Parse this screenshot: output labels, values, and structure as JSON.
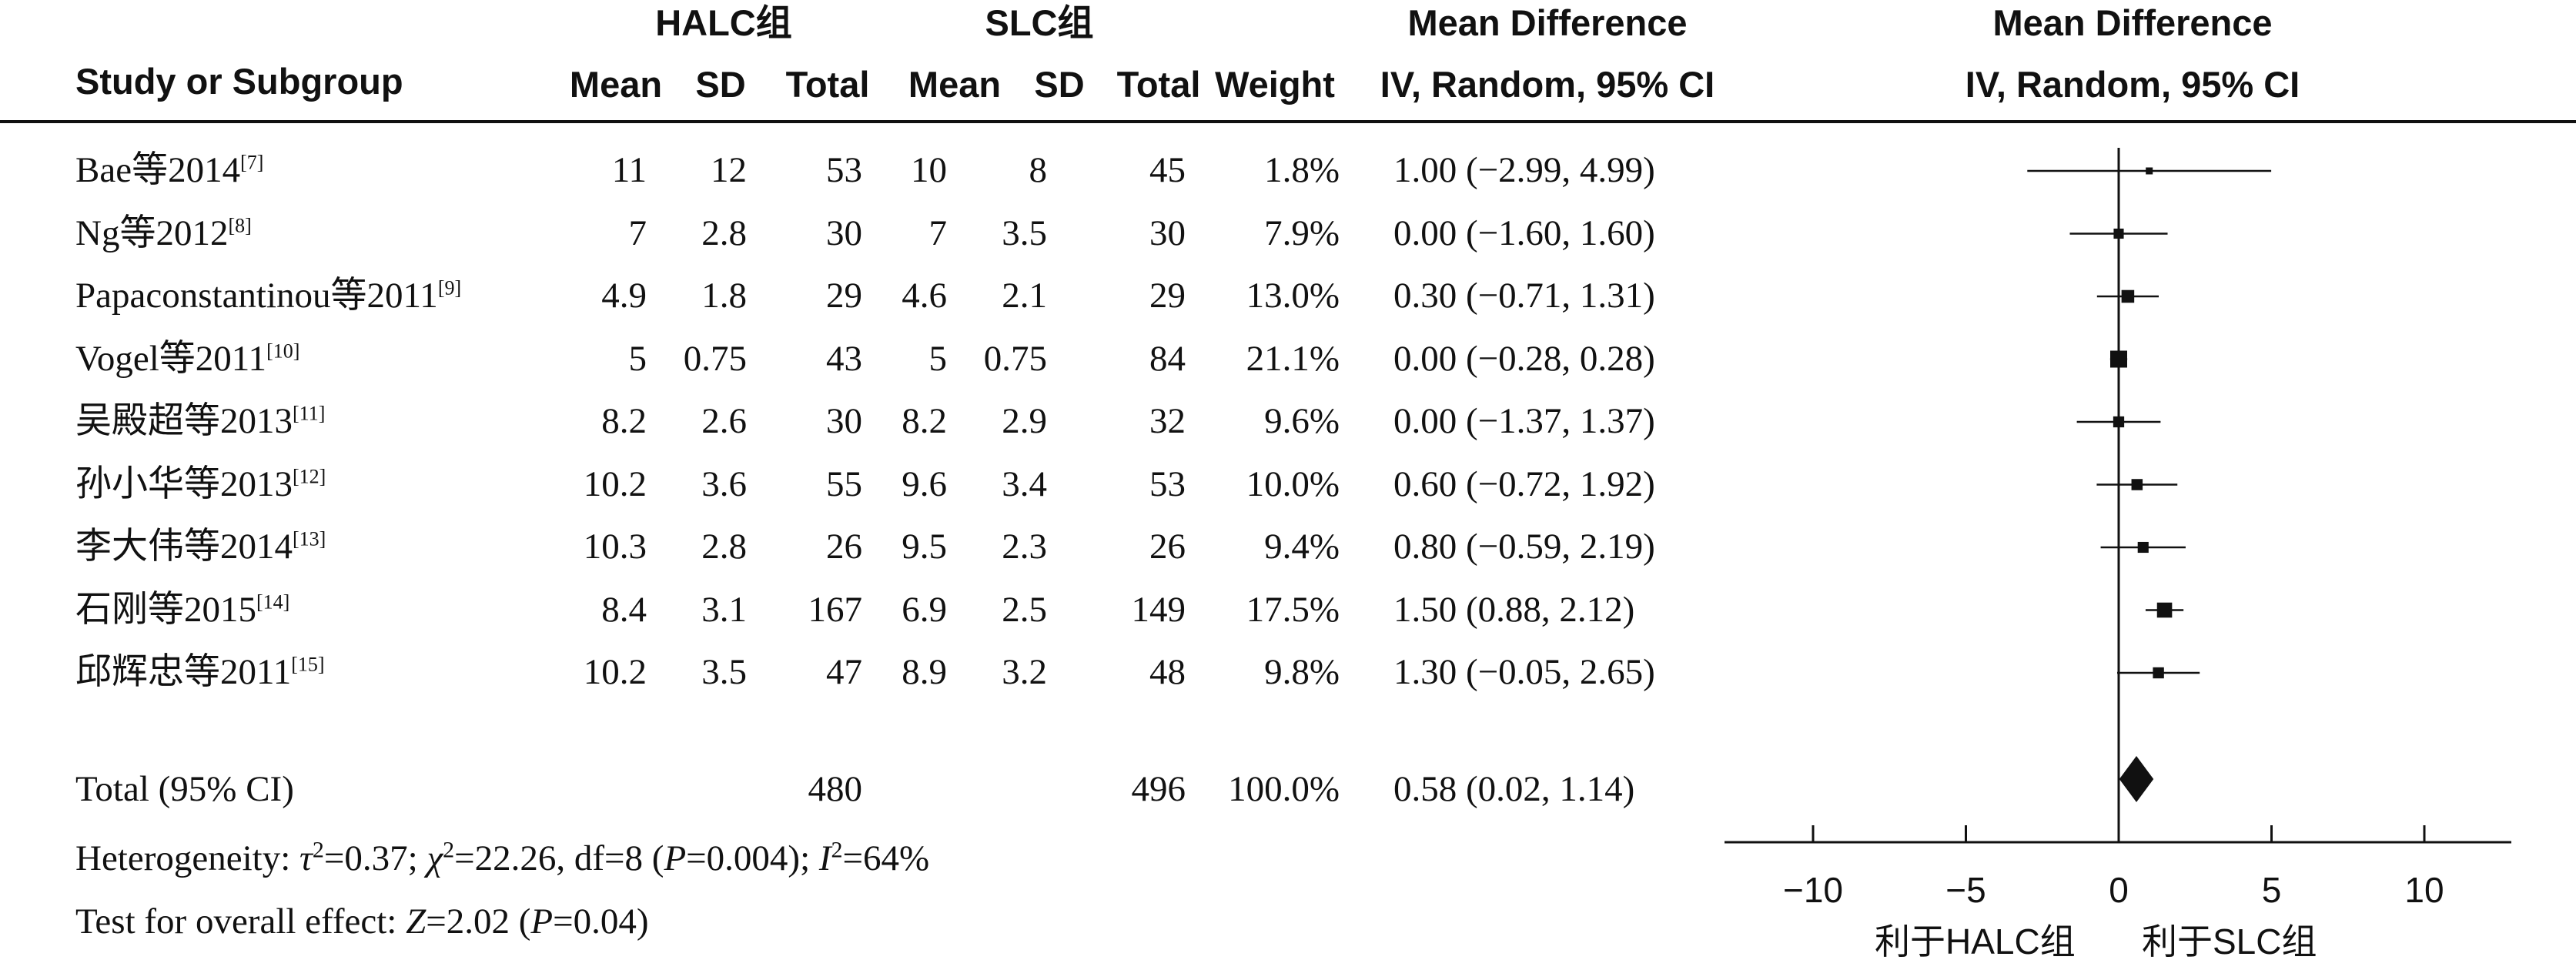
{
  "headers": {
    "halc_group": "HALC组",
    "slc_group": "SLC组",
    "md_title": "Mean Difference",
    "study": "Study or Subgroup",
    "mean": "Mean",
    "sd": "SD",
    "total": "Total",
    "weight": "Weight",
    "md_method": "IV, Random, 95% CI",
    "plot_title": "Mean Difference",
    "plot_method": "IV, Random, 95% CI"
  },
  "studies": [
    {
      "name": "Bae等2014",
      "ref": "[7]",
      "halc_mean": "11",
      "halc_sd": "12",
      "halc_total": "53",
      "slc_mean": "10",
      "slc_sd": "8",
      "slc_total": "45",
      "weight": "1.8%",
      "ci": "1.00 (−2.99, 4.99)"
    },
    {
      "name": "Ng等2012",
      "ref": "[8]",
      "halc_mean": "7",
      "halc_sd": "2.8",
      "halc_total": "30",
      "slc_mean": "7",
      "slc_sd": "3.5",
      "slc_total": "30",
      "weight": "7.9%",
      "ci": "0.00 (−1.60, 1.60)"
    },
    {
      "name": "Papaconstantinou等2011",
      "ref": "[9]",
      "halc_mean": "4.9",
      "halc_sd": "1.8",
      "halc_total": "29",
      "slc_mean": "4.6",
      "slc_sd": "2.1",
      "slc_total": "29",
      "weight": "13.0%",
      "ci": "0.30 (−0.71, 1.31)"
    },
    {
      "name": "Vogel等2011",
      "ref": "[10]",
      "halc_mean": "5",
      "halc_sd": "0.75",
      "halc_total": "43",
      "slc_mean": "5",
      "slc_sd": "0.75",
      "slc_total": "84",
      "weight": "21.1%",
      "ci": "0.00 (−0.28, 0.28)"
    },
    {
      "name": "吴殿超等2013",
      "ref": "[11]",
      "halc_mean": "8.2",
      "halc_sd": "2.6",
      "halc_total": "30",
      "slc_mean": "8.2",
      "slc_sd": "2.9",
      "slc_total": "32",
      "weight": "9.6%",
      "ci": "0.00 (−1.37, 1.37)"
    },
    {
      "name": "孙小华等2013",
      "ref": "[12]",
      "halc_mean": "10.2",
      "halc_sd": "3.6",
      "halc_total": "55",
      "slc_mean": "9.6",
      "slc_sd": "3.4",
      "slc_total": "53",
      "weight": "10.0%",
      "ci": "0.60 (−0.72, 1.92)"
    },
    {
      "name": "李大伟等2014",
      "ref": "[13]",
      "halc_mean": "10.3",
      "halc_sd": "2.8",
      "halc_total": "26",
      "slc_mean": "9.5",
      "slc_sd": "2.3",
      "slc_total": "26",
      "weight": "9.4%",
      "ci": "0.80 (−0.59, 2.19)"
    },
    {
      "name": "石刚等2015",
      "ref": "[14]",
      "halc_mean": "8.4",
      "halc_sd": "3.1",
      "halc_total": "167",
      "slc_mean": "6.9",
      "slc_sd": "2.5",
      "slc_total": "149",
      "weight": "17.5%",
      "ci": "1.50 (0.88, 2.12)"
    },
    {
      "name": "邱辉忠等2011",
      "ref": "[15]",
      "halc_mean": "10.2",
      "halc_sd": "3.5",
      "halc_total": "47",
      "slc_mean": "8.9",
      "slc_sd": "3.2",
      "slc_total": "48",
      "weight": "9.8%",
      "ci": "1.30 (−0.05, 2.65)"
    }
  ],
  "total_row": {
    "label": "Total (95% CI)",
    "halc_total": "480",
    "slc_total": "496",
    "weight": "100.0%",
    "ci": "0.58 (0.02, 1.14)"
  },
  "heterogeneity": {
    "label": "Heterogeneity:",
    "tau2_sym": "τ",
    "tau2_value": "=0.37;",
    "chi2_sym": "χ",
    "chi2_value": "=22.26, df=8 (",
    "p_sym": "P",
    "p_value": "=0.004);",
    "i2_sym": "I",
    "i2_value": "=64%"
  },
  "overall": {
    "label": "Test for overall effect:",
    "z_sym": "Z",
    "z_value": "=2.02 (",
    "p_sym": "P",
    "p_value": "=0.04)"
  },
  "favours": {
    "left": "利于HALC组",
    "right": "利于SLC组"
  },
  "chart_data": {
    "type": "forest",
    "title": "Mean Difference",
    "subtitle": "IV, Random, 95% CI",
    "xlim": [
      -12.5,
      13
    ],
    "ticks": [
      -10,
      -5,
      0,
      5,
      10
    ],
    "tick_labels": [
      "−10",
      "−5",
      "0",
      "5",
      "10"
    ],
    "studies": [
      {
        "md": 1.0,
        "lo": -2.99,
        "hi": 4.99,
        "weight": 1.8
      },
      {
        "md": 0.0,
        "lo": -1.6,
        "hi": 1.6,
        "weight": 7.9
      },
      {
        "md": 0.3,
        "lo": -0.71,
        "hi": 1.31,
        "weight": 13.0
      },
      {
        "md": 0.0,
        "lo": -0.28,
        "hi": 0.28,
        "weight": 21.1
      },
      {
        "md": 0.0,
        "lo": -1.37,
        "hi": 1.37,
        "weight": 9.6
      },
      {
        "md": 0.6,
        "lo": -0.72,
        "hi": 1.92,
        "weight": 10.0
      },
      {
        "md": 0.8,
        "lo": -0.59,
        "hi": 2.19,
        "weight": 9.4
      },
      {
        "md": 1.5,
        "lo": 0.88,
        "hi": 2.12,
        "weight": 17.5
      },
      {
        "md": 1.3,
        "lo": -0.05,
        "hi": 2.65,
        "weight": 9.8
      }
    ],
    "pooled": {
      "md": 0.58,
      "lo": 0.02,
      "hi": 1.14
    },
    "colors": {
      "marks": "#111111"
    }
  }
}
